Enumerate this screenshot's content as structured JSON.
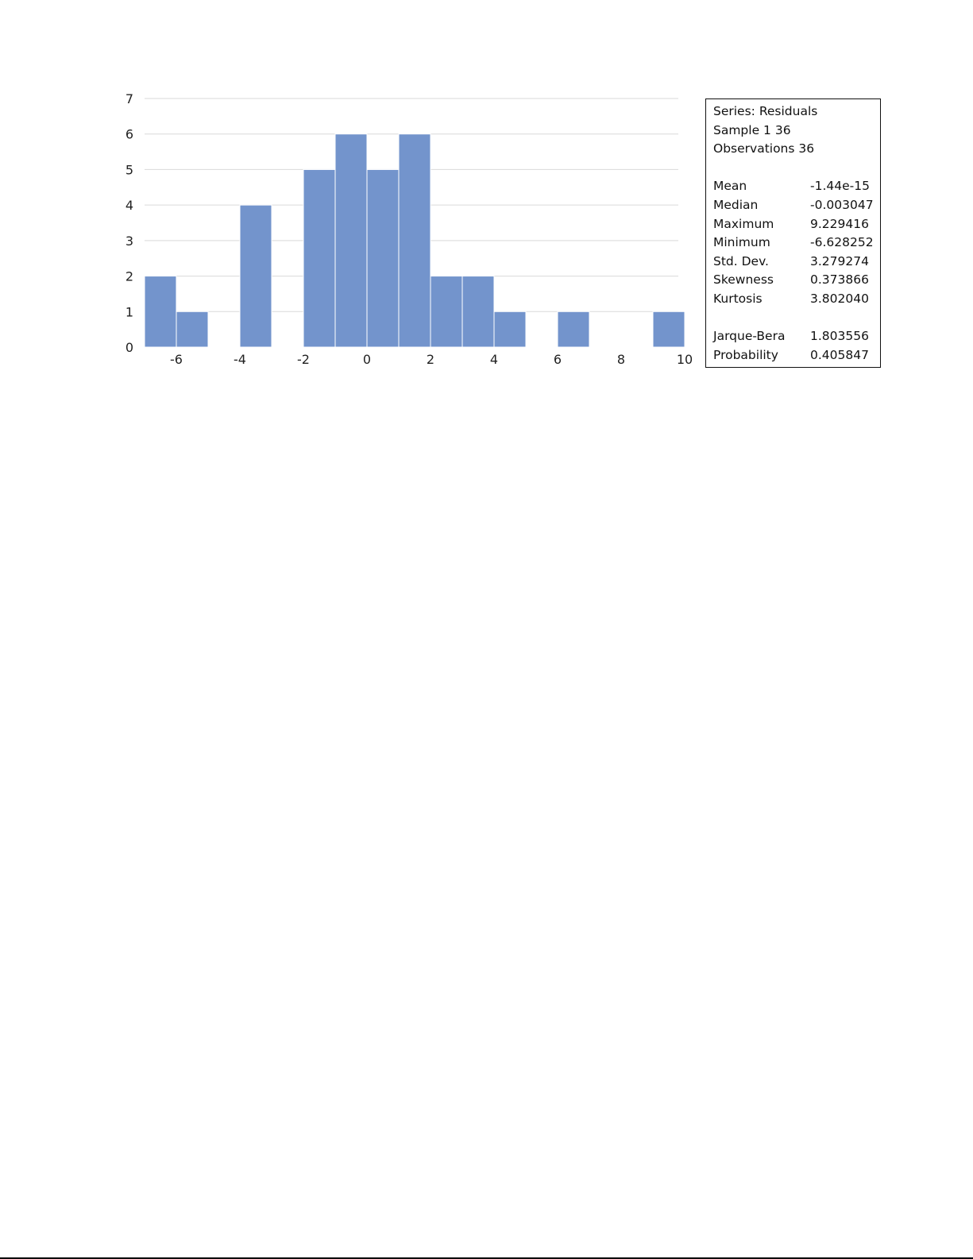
{
  "chart_data": {
    "type": "bar",
    "subtype": "histogram",
    "bar_color": "#7394cc",
    "grid_color": "#d9d9d9",
    "bin_width": 1,
    "bins": [
      {
        "start": -7,
        "end": -6,
        "count": 2
      },
      {
        "start": -6,
        "end": -5,
        "count": 1
      },
      {
        "start": -5,
        "end": -4,
        "count": 0
      },
      {
        "start": -4,
        "end": -3,
        "count": 4
      },
      {
        "start": -3,
        "end": -2,
        "count": 0
      },
      {
        "start": -2,
        "end": -1,
        "count": 5
      },
      {
        "start": -1,
        "end": 0,
        "count": 6
      },
      {
        "start": 0,
        "end": 1,
        "count": 5
      },
      {
        "start": 1,
        "end": 2,
        "count": 6
      },
      {
        "start": 2,
        "end": 3,
        "count": 2
      },
      {
        "start": 3,
        "end": 4,
        "count": 2
      },
      {
        "start": 4,
        "end": 5,
        "count": 1
      },
      {
        "start": 5,
        "end": 6,
        "count": 0
      },
      {
        "start": 6,
        "end": 7,
        "count": 1
      },
      {
        "start": 7,
        "end": 8,
        "count": 0
      },
      {
        "start": 8,
        "end": 9,
        "count": 0
      },
      {
        "start": 9,
        "end": 10,
        "count": 1
      }
    ],
    "xlim": [
      -7,
      10
    ],
    "ylim": [
      0,
      7
    ],
    "x_ticks": [
      "-6",
      "-4",
      "-2",
      "0",
      "2",
      "4",
      "6",
      "8",
      "10"
    ],
    "y_ticks": [
      "0",
      "1",
      "2",
      "3",
      "4",
      "5",
      "6",
      "7"
    ],
    "grid": true
  },
  "stats": {
    "series": "Series: Residuals",
    "sample": "Sample 1 36",
    "observations": "Observations 36",
    "rows": [
      {
        "label": "Mean",
        "value": "-1.44e-15"
      },
      {
        "label": "Median",
        "value": "-0.003047"
      },
      {
        "label": "Maximum",
        "value": "9.229416"
      },
      {
        "label": "Minimum",
        "value": "-6.628252"
      },
      {
        "label": "Std. Dev.",
        "value": "3.279274"
      },
      {
        "label": "Skewness",
        "value": "0.373866"
      },
      {
        "label": "Kurtosis",
        "value": "3.802040"
      }
    ],
    "test_rows": [
      {
        "label": "Jarque-Bera",
        "value": "1.803556"
      },
      {
        "label": "Probability",
        "value": "0.405847"
      }
    ]
  }
}
